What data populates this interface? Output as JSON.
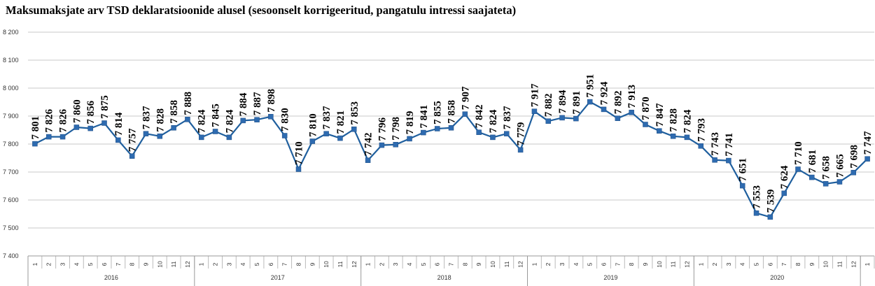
{
  "chart_data": {
    "type": "line",
    "title": "Maksumaksjate arv TSD deklaratsioonide alusel (sesoonselt korrigeeritud, pangatulu intressi saajateta)",
    "ylim": [
      7400,
      8200
    ],
    "y_ticks": [
      "7 400",
      "7 500",
      "7 600",
      "7 700",
      "7 800",
      "7 900",
      "8 000",
      "8 100",
      "8 200"
    ],
    "y_tick_values": [
      7400,
      7500,
      7600,
      7700,
      7800,
      7900,
      8000,
      8100,
      8200
    ],
    "grid": true,
    "legend": "none",
    "series_color": "#1f5f9e",
    "marker_color": "#2e6bb0",
    "years": [
      {
        "label": "2016",
        "months": 12
      },
      {
        "label": "2017",
        "months": 12
      },
      {
        "label": "2018",
        "months": 12
      },
      {
        "label": "2019",
        "months": 12
      },
      {
        "label": "2020",
        "months": 12
      },
      {
        "label": "",
        "months": 1
      }
    ],
    "x": [
      "1",
      "2",
      "3",
      "4",
      "5",
      "6",
      "7",
      "8",
      "9",
      "10",
      "11",
      "12",
      "1",
      "2",
      "3",
      "4",
      "5",
      "6",
      "7",
      "8",
      "9",
      "10",
      "11",
      "12",
      "1",
      "2",
      "3",
      "4",
      "5",
      "6",
      "7",
      "8",
      "9",
      "10",
      "11",
      "12",
      "1",
      "2",
      "3",
      "4",
      "5",
      "6",
      "7",
      "8",
      "9",
      "10",
      "11",
      "12",
      "1",
      "2",
      "3",
      "4",
      "5",
      "6",
      "7",
      "8",
      "9",
      "10",
      "11",
      "12",
      "1"
    ],
    "values": [
      7801,
      7826,
      7826,
      7860,
      7856,
      7875,
      7814,
      7757,
      7837,
      7828,
      7858,
      7888,
      7824,
      7845,
      7824,
      7884,
      7887,
      7898,
      7830,
      7710,
      7810,
      7837,
      7821,
      7853,
      7742,
      7796,
      7798,
      7819,
      7841,
      7855,
      7858,
      7907,
      7842,
      7824,
      7837,
      7779,
      7917,
      7882,
      7894,
      7891,
      7951,
      7924,
      7892,
      7913,
      7870,
      7847,
      7828,
      7824,
      7793,
      7743,
      7741,
      7651,
      7553,
      7539,
      7624,
      7710,
      7681,
      7658,
      7665,
      7698,
      7747
    ],
    "value_labels": [
      "7 801",
      "7 826",
      "7 826",
      "7 860",
      "7 856",
      "7 875",
      "7 814",
      "7 757",
      "7 837",
      "7 828",
      "7 858",
      "7 888",
      "7 824",
      "7 845",
      "7 824",
      "7 884",
      "7 887",
      "7 898",
      "7 830",
      "7 710",
      "7 810",
      "7 837",
      "7 821",
      "7 853",
      "7 742",
      "7 796",
      "7 798",
      "7 819",
      "7 841",
      "7 855",
      "7 858",
      "7 907",
      "7 842",
      "7 824",
      "7 837",
      "7 779",
      "7 917",
      "7 882",
      "7 894",
      "7 891",
      "7 951",
      "7 924",
      "7 892",
      "7 913",
      "7 870",
      "7 847",
      "7 828",
      "7 824",
      "7 793",
      "7 743",
      "7 741",
      "7 651",
      "7 553",
      "7 539",
      "7 624",
      "7 710",
      "7 681",
      "7 658",
      "7 665",
      "7 698",
      "7 747"
    ]
  }
}
